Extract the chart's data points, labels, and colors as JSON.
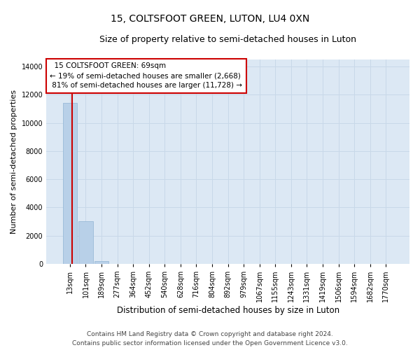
{
  "title": "15, COLTSFOOT GREEN, LUTON, LU4 0XN",
  "subtitle": "Size of property relative to semi-detached houses in Luton",
  "xlabel": "Distribution of semi-detached houses by size in Luton",
  "ylabel": "Number of semi-detached properties",
  "footer_line1": "Contains HM Land Registry data © Crown copyright and database right 2024.",
  "footer_line2": "Contains public sector information licensed under the Open Government Licence v3.0.",
  "bar_labels": [
    "13sqm",
    "101sqm",
    "189sqm",
    "277sqm",
    "364sqm",
    "452sqm",
    "540sqm",
    "628sqm",
    "716sqm",
    "804sqm",
    "892sqm",
    "979sqm",
    "1067sqm",
    "1155sqm",
    "1243sqm",
    "1331sqm",
    "1419sqm",
    "1506sqm",
    "1594sqm",
    "1682sqm",
    "1770sqm"
  ],
  "bar_values": [
    11400,
    3050,
    200,
    10,
    5,
    2,
    1,
    1,
    0,
    0,
    0,
    0,
    0,
    0,
    0,
    0,
    0,
    0,
    0,
    0,
    0
  ],
  "bar_color": "#b8d0e8",
  "bar_edge_color": "#90b4d4",
  "grid_color": "#c8d8e8",
  "axes_background": "#dce8f4",
  "fig_background": "#ffffff",
  "property_sqm": 69,
  "property_label": "15 COLTSFOOT GREEN: 69sqm",
  "pct_smaller": 19,
  "count_smaller": 2668,
  "pct_larger": 81,
  "count_larger": 11728,
  "vline_color": "#cc0000",
  "annotation_box_edgecolor": "#cc0000",
  "annotation_box_facecolor": "#ffffff",
  "ylim": [
    0,
    14500
  ],
  "yticks": [
    0,
    2000,
    4000,
    6000,
    8000,
    10000,
    12000,
    14000
  ],
  "title_fontsize": 10,
  "subtitle_fontsize": 9,
  "xlabel_fontsize": 8.5,
  "ylabel_fontsize": 8,
  "tick_fontsize": 7,
  "annotation_fontsize": 7.5,
  "footer_fontsize": 6.5
}
